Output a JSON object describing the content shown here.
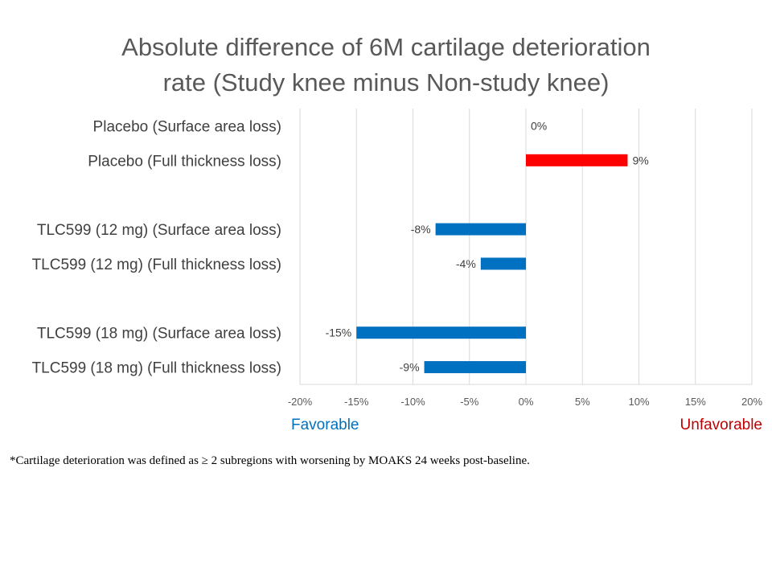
{
  "chart_data": {
    "type": "bar",
    "orientation": "horizontal",
    "title_lines": [
      "Absolute difference of 6M cartilage deterioration",
      "rate (Study knee minus Non-study knee)"
    ],
    "categories": [
      "Placebo (Surface area loss)",
      "Placebo (Full thickness loss)",
      "TLC599 (12 mg) (Surface area loss)",
      "TLC599 (12 mg) (Full thickness loss)",
      "TLC599 (18 mg) (Surface area loss)",
      "TLC599 (18 mg) (Full thickness loss)"
    ],
    "category_slots": [
      0,
      1,
      3,
      4,
      6,
      7
    ],
    "total_slots": 8,
    "values": [
      0,
      9,
      -8,
      -4,
      -15,
      -9
    ],
    "value_labels": [
      "0%",
      "9%",
      "-8%",
      "-4%",
      "-15%",
      "-9%"
    ],
    "bar_colors": [
      "#FF0000",
      "#FF0000",
      "#0070C0",
      "#0070C0",
      "#0070C0",
      "#0070C0"
    ],
    "xlim": [
      -20,
      20
    ],
    "x_ticks": [
      -20,
      -15,
      -10,
      -5,
      0,
      5,
      10,
      15,
      20
    ],
    "x_tick_labels": [
      "-20%",
      "-15%",
      "-10%",
      "-5%",
      "0%",
      "5%",
      "10%",
      "15%",
      "20%"
    ],
    "grid": true,
    "xlabel": "",
    "ylabel": ""
  },
  "direction_labels": {
    "favorable": "Favorable",
    "unfavorable": "Unfavorable",
    "favorable_color": "#0070C0",
    "unfavorable_color": "#C00000"
  },
  "footnote": "*Cartilage deterioration was defined as ≥ 2 subregions with worsening by MOAKS 24 weeks post-baseline."
}
